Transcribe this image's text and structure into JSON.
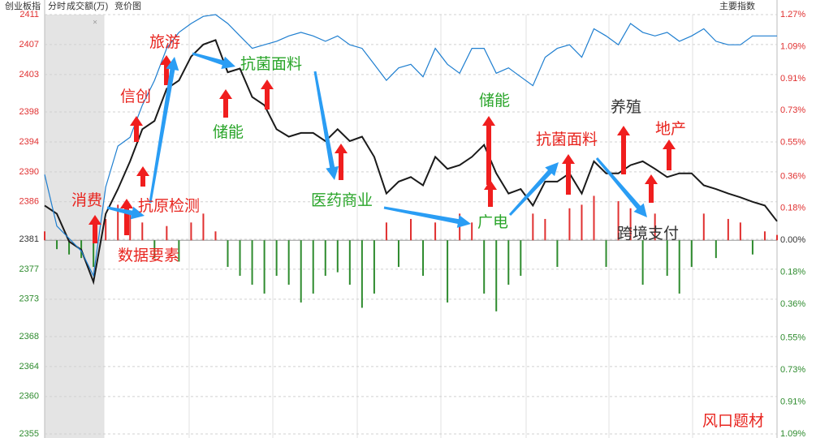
{
  "chart_data": {
    "type": "line",
    "header": [
      "创业板指",
      "分时",
      "成交额(万)",
      "竞价图"
    ],
    "header_right": "主要指数",
    "ylim": [
      2355,
      2411
    ],
    "yticks": [
      2411,
      2407,
      2403,
      2398,
      2394,
      2390,
      2386,
      2381,
      2377,
      2373,
      2368,
      2364,
      2360,
      2355
    ],
    "y2lim": [
      -1.09,
      1.27
    ],
    "y2ticks": [
      {
        "value": 1.27,
        "label": "1.27%"
      },
      {
        "value": 1.09,
        "label": "1.09%"
      },
      {
        "value": 0.91,
        "label": "0.91%"
      },
      {
        "value": 0.73,
        "label": "0.73%"
      },
      {
        "value": 0.55,
        "label": "0.55%"
      },
      {
        "value": 0.36,
        "label": "0.36%"
      },
      {
        "value": 0.18,
        "label": "0.18%"
      },
      {
        "value": 0,
        "label": "0.00%"
      },
      {
        "value": -0.18,
        "label": "0.18%"
      },
      {
        "value": -0.36,
        "label": "0.36%"
      },
      {
        "value": -0.55,
        "label": "0.55%"
      },
      {
        "value": -0.73,
        "label": "0.73%"
      },
      {
        "value": -0.91,
        "label": "0.91%"
      },
      {
        "value": -1.09,
        "label": "1.09%"
      }
    ],
    "up_color": "#e03030",
    "down_color": "#2e8b2e",
    "series": [
      {
        "color": "#1a1a1a",
        "values": [
          2385.5,
          2384.4,
          2380.7,
          2379.6,
          2375.3,
          2384.4,
          2387.7,
          2391.4,
          2395.7,
          2396.8,
          2401.1,
          2402.2,
          2405.4,
          2407.0,
          2407.6,
          2403.3,
          2403.8,
          2400.0,
          2398.9,
          2395.7,
          2394.7,
          2395.2,
          2395.2,
          2394.1,
          2395.7,
          2394.1,
          2394.7,
          2392.0,
          2387.1,
          2388.7,
          2389.3,
          2388.2,
          2392.0,
          2390.4,
          2390.9,
          2392.0,
          2393.6,
          2389.8,
          2387.1,
          2387.7,
          2385.5,
          2388.7,
          2388.7,
          2389.8,
          2387.1,
          2391.4,
          2389.8,
          2389.8,
          2390.9,
          2391.4,
          2390.4,
          2389.3,
          2389.8,
          2389.8,
          2388.2,
          2387.7,
          2387.1,
          2386.6,
          2386.0,
          2385.5,
          2383.4
        ]
      },
      {
        "color": "#1f7fd0",
        "axis": "y2",
        "values": [
          0.37,
          0.08,
          0.01,
          -0.06,
          -0.2,
          0.3,
          0.53,
          0.58,
          0.76,
          0.9,
          1.08,
          1.17,
          1.22,
          1.26,
          1.27,
          1.22,
          1.15,
          1.08,
          1.1,
          1.12,
          1.15,
          1.17,
          1.15,
          1.12,
          1.15,
          1.1,
          1.08,
          0.99,
          0.9,
          0.97,
          0.99,
          0.92,
          1.08,
          0.99,
          0.94,
          1.08,
          1.08,
          0.94,
          0.97,
          0.92,
          0.87,
          1.03,
          1.08,
          1.1,
          1.03,
          1.19,
          1.15,
          1.1,
          1.22,
          1.17,
          1.15,
          1.17,
          1.12,
          1.15,
          1.19,
          1.12,
          1.1,
          1.1,
          1.15,
          1.15,
          1.15
        ]
      }
    ],
    "volume": {
      "axis": "y2",
      "values": [
        0.05,
        -0.05,
        -0.08,
        -0.1,
        -0.15,
        0.12,
        0.2,
        0.15,
        0.1,
        -0.1,
        0.08,
        -0.12,
        0.1,
        0.15,
        0.05,
        -0.15,
        -0.2,
        -0.25,
        -0.3,
        -0.2,
        -0.25,
        -0.35,
        -0.3,
        -0.2,
        -0.18,
        -0.25,
        -0.38,
        -0.3,
        0.1,
        -0.15,
        0.12,
        -0.2,
        0.1,
        -0.35,
        0.15,
        0.1,
        -0.3,
        -0.4,
        -0.25,
        -0.2,
        0.15,
        0.12,
        -0.15,
        0.18,
        0.2,
        0.25,
        -0.15,
        0.22,
        0.18,
        -0.25,
        0.15,
        -0.2,
        -0.3,
        -0.15,
        0.15,
        -0.1,
        0.12,
        0.1,
        -0.08,
        0.05,
        0.03
      ]
    },
    "annotations": [
      {
        "text": "消费",
        "color": "#e8251f"
      },
      {
        "text": "信创",
        "color": "#e8251f"
      },
      {
        "text": "旅游",
        "color": "#e8251f"
      },
      {
        "text": "抗原检测",
        "color": "#e8251f"
      },
      {
        "text": "数据要素",
        "color": "#e8251f"
      },
      {
        "text": "储能",
        "color": "#2aa52a"
      },
      {
        "text": "抗菌面料",
        "color": "#2aa52a"
      },
      {
        "text": "医药商业",
        "color": "#2aa52a"
      },
      {
        "text": "储能",
        "color": "#2aa52a"
      },
      {
        "text": "广电",
        "color": "#2aa52a"
      },
      {
        "text": "抗菌面料",
        "color": "#e8251f"
      },
      {
        "text": "养殖",
        "color": "#333333"
      },
      {
        "text": "地产",
        "color": "#e8251f"
      },
      {
        "text": "跨境支付",
        "color": "#333333"
      },
      {
        "text": "风口题材",
        "color": "#e8251f"
      }
    ]
  }
}
